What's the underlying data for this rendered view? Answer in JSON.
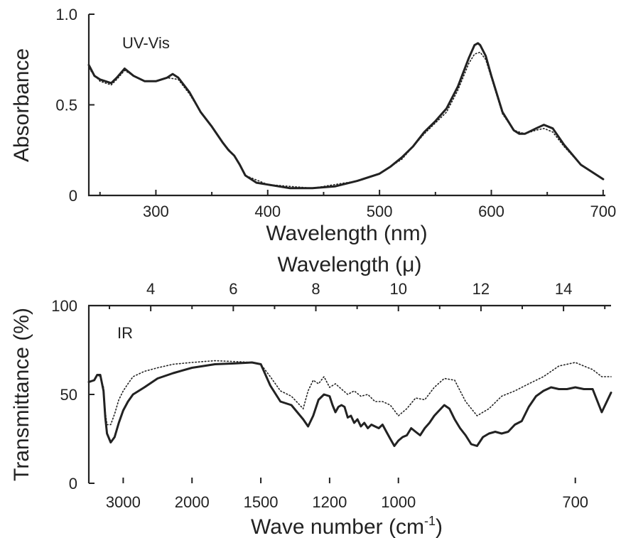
{
  "chart_data": [
    {
      "type": "line",
      "panel_label": "UV-Vis",
      "xlabel": "Wavelength (nm)",
      "ylabel": "Absorbance",
      "xlim": [
        240,
        702
      ],
      "ylim": [
        0,
        1.0
      ],
      "x_ticks": [
        300,
        400,
        500,
        600,
        700
      ],
      "x_tick_labels": [
        "300",
        "400",
        "500",
        "600",
        "700"
      ],
      "y_ticks": [
        0,
        0.5,
        1.0
      ],
      "y_tick_labels": [
        "0",
        "0.5",
        "1.0"
      ],
      "grid": false,
      "series": [
        {
          "style": "solid",
          "x": [
            240,
            245,
            250,
            260,
            265,
            272,
            280,
            290,
            300,
            310,
            315,
            320,
            330,
            340,
            350,
            360,
            365,
            370,
            375,
            380,
            390,
            400,
            420,
            440,
            460,
            480,
            500,
            510,
            520,
            530,
            540,
            550,
            560,
            570,
            580,
            585,
            588,
            590,
            595,
            600,
            610,
            620,
            625,
            630,
            640,
            647,
            655,
            665,
            680,
            700
          ],
          "y": [
            0.72,
            0.66,
            0.64,
            0.62,
            0.65,
            0.7,
            0.66,
            0.63,
            0.63,
            0.65,
            0.67,
            0.65,
            0.57,
            0.46,
            0.38,
            0.29,
            0.25,
            0.22,
            0.17,
            0.11,
            0.07,
            0.06,
            0.04,
            0.04,
            0.05,
            0.08,
            0.12,
            0.16,
            0.21,
            0.27,
            0.35,
            0.41,
            0.48,
            0.6,
            0.76,
            0.83,
            0.84,
            0.83,
            0.77,
            0.66,
            0.46,
            0.36,
            0.34,
            0.34,
            0.37,
            0.39,
            0.37,
            0.28,
            0.17,
            0.09
          ]
        },
        {
          "style": "dotted",
          "x": [
            240,
            250,
            260,
            265,
            272,
            280,
            290,
            300,
            310,
            320,
            330,
            340,
            350,
            360,
            370,
            380,
            400,
            440,
            480,
            500,
            520,
            540,
            560,
            570,
            580,
            585,
            590,
            595,
            600,
            610,
            620,
            630,
            640,
            647,
            655,
            665,
            680,
            700
          ],
          "y": [
            0.7,
            0.63,
            0.61,
            0.64,
            0.69,
            0.66,
            0.63,
            0.63,
            0.65,
            0.64,
            0.56,
            0.46,
            0.38,
            0.29,
            0.22,
            0.11,
            0.06,
            0.04,
            0.08,
            0.12,
            0.2,
            0.34,
            0.46,
            0.58,
            0.73,
            0.78,
            0.79,
            0.75,
            0.65,
            0.45,
            0.36,
            0.34,
            0.36,
            0.37,
            0.35,
            0.27,
            0.17,
            0.09
          ]
        }
      ]
    },
    {
      "type": "line",
      "panel_label": "IR",
      "xlabel": "Wave number (cm-1)",
      "xlabel_top": "Wavelength (μ)",
      "ylabel": "Transmittance (%)",
      "x_axis_scale": "reciprocal",
      "xlim": [
        4000,
        660
      ],
      "ylim": [
        0,
        100
      ],
      "x_ticks": [
        3000,
        2000,
        1500,
        1200,
        1000,
        700
      ],
      "x_tick_labels": [
        "3000",
        "2000",
        "1500",
        "1200",
        "1000",
        "700"
      ],
      "x_ticks_top": [
        4,
        6,
        8,
        10,
        12,
        14
      ],
      "x_tick_labels_top": [
        "4",
        "6",
        "8",
        "10",
        "12",
        "14"
      ],
      "y_ticks": [
        0,
        50,
        100
      ],
      "y_tick_labels": [
        "0",
        "50",
        "100"
      ],
      "grid": false,
      "series": [
        {
          "style": "solid",
          "x": [
            4000,
            3800,
            3700,
            3600,
            3500,
            3450,
            3400,
            3300,
            3200,
            3100,
            3000,
            2900,
            2800,
            2600,
            2400,
            2200,
            2000,
            1800,
            1650,
            1550,
            1500,
            1450,
            1400,
            1350,
            1300,
            1280,
            1260,
            1240,
            1220,
            1200,
            1190,
            1180,
            1170,
            1160,
            1150,
            1140,
            1130,
            1120,
            1110,
            1100,
            1090,
            1080,
            1070,
            1060,
            1050,
            1040,
            1030,
            1020,
            1010,
            1000,
            990,
            980,
            970,
            960,
            950,
            940,
            930,
            920,
            910,
            900,
            890,
            880,
            870,
            860,
            850,
            840,
            830,
            820,
            810,
            800,
            790,
            780,
            770,
            760,
            750,
            740,
            730,
            720,
            710,
            700,
            690,
            680,
            670,
            660
          ],
          "y": [
            57,
            58,
            61,
            61,
            52,
            37,
            28,
            23,
            26,
            34,
            41,
            46,
            50,
            54,
            59,
            62,
            65,
            67,
            67.5,
            68,
            67,
            55,
            46,
            44,
            36,
            32,
            38,
            47,
            50,
            49,
            44,
            40,
            43,
            44,
            43,
            37,
            38,
            34,
            36,
            32,
            34,
            31,
            33,
            32,
            31,
            33,
            29,
            25,
            21,
            24,
            26,
            27,
            31,
            29,
            27,
            31,
            34,
            38,
            41,
            44,
            42,
            36,
            31,
            27,
            22,
            21,
            26,
            28,
            29,
            28,
            29,
            33,
            35,
            43,
            49,
            52,
            54,
            53,
            53,
            54,
            53,
            53,
            40,
            51
          ]
        },
        {
          "style": "dotted",
          "x": [
            4000,
            3800,
            3700,
            3600,
            3500,
            3450,
            3400,
            3300,
            3200,
            3100,
            3000,
            2900,
            2800,
            2600,
            2400,
            2200,
            2000,
            1800,
            1650,
            1550,
            1500,
            1450,
            1400,
            1350,
            1300,
            1280,
            1260,
            1240,
            1220,
            1200,
            1180,
            1160,
            1140,
            1120,
            1100,
            1080,
            1060,
            1040,
            1020,
            1000,
            980,
            960,
            940,
            920,
            900,
            880,
            860,
            840,
            820,
            800,
            780,
            760,
            740,
            720,
            700,
            690,
            680,
            670,
            660
          ],
          "y": [
            57,
            58,
            61,
            60,
            54,
            40,
            33,
            33,
            39,
            47,
            52,
            56,
            60,
            63,
            65,
            67,
            68,
            69,
            68.5,
            68,
            67,
            60,
            52,
            49,
            42,
            52,
            58,
            56,
            60,
            54,
            56,
            53,
            50,
            52,
            49,
            50,
            46,
            46,
            44,
            38,
            42,
            48,
            47,
            54,
            59,
            58,
            46,
            38,
            42,
            49,
            52,
            56,
            60,
            66,
            68,
            66,
            64,
            60,
            60
          ]
        }
      ]
    }
  ]
}
